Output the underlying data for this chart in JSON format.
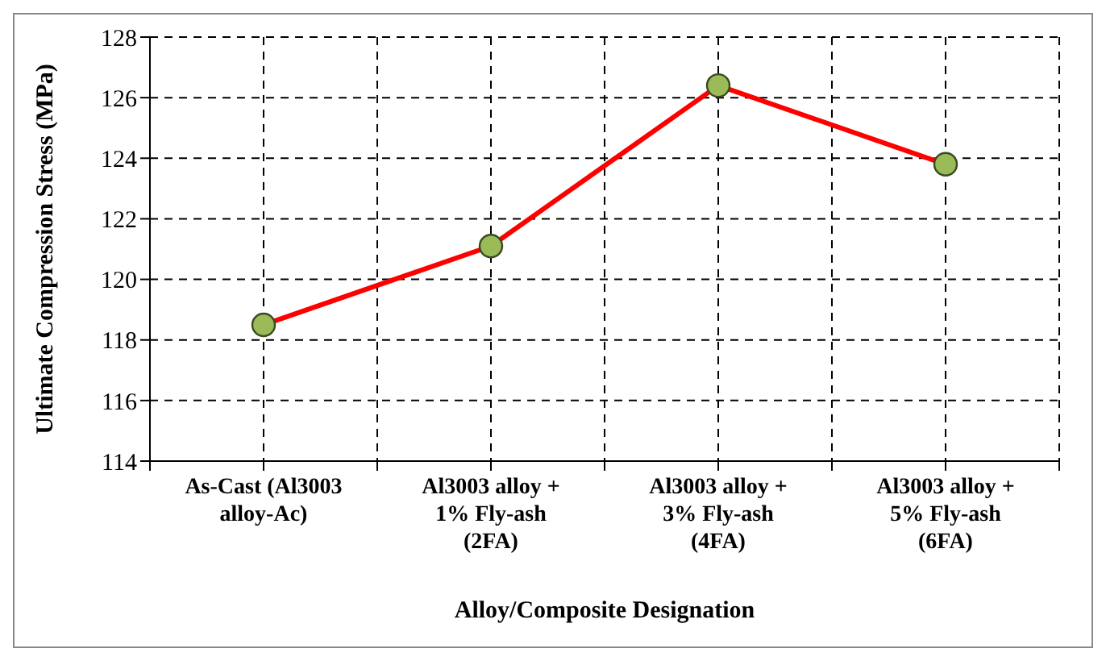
{
  "chart_data": {
    "type": "line",
    "xlabel": "Alloy/Composite Designation",
    "ylabel": "Ultimate Compression Stress (MPa)",
    "categories": [
      "As-Cast (Al3003 alloy-Ac)",
      "Al3003 alloy + 1% Fly-ash (2FA)",
      "Al3003 alloy + 3% Fly-ash (4FA)",
      "Al3003 alloy + 5% Fly-ash (6FA)"
    ],
    "series": [
      {
        "color": "#ff0000",
        "values": [
          118.5,
          121.1,
          126.4,
          123.8
        ]
      }
    ],
    "ylim": [
      114,
      128
    ],
    "yticks": [
      114,
      116,
      118,
      120,
      122,
      124,
      126,
      128
    ],
    "grid": true,
    "marker": "circle",
    "line_style": "solid",
    "legend": false
  }
}
